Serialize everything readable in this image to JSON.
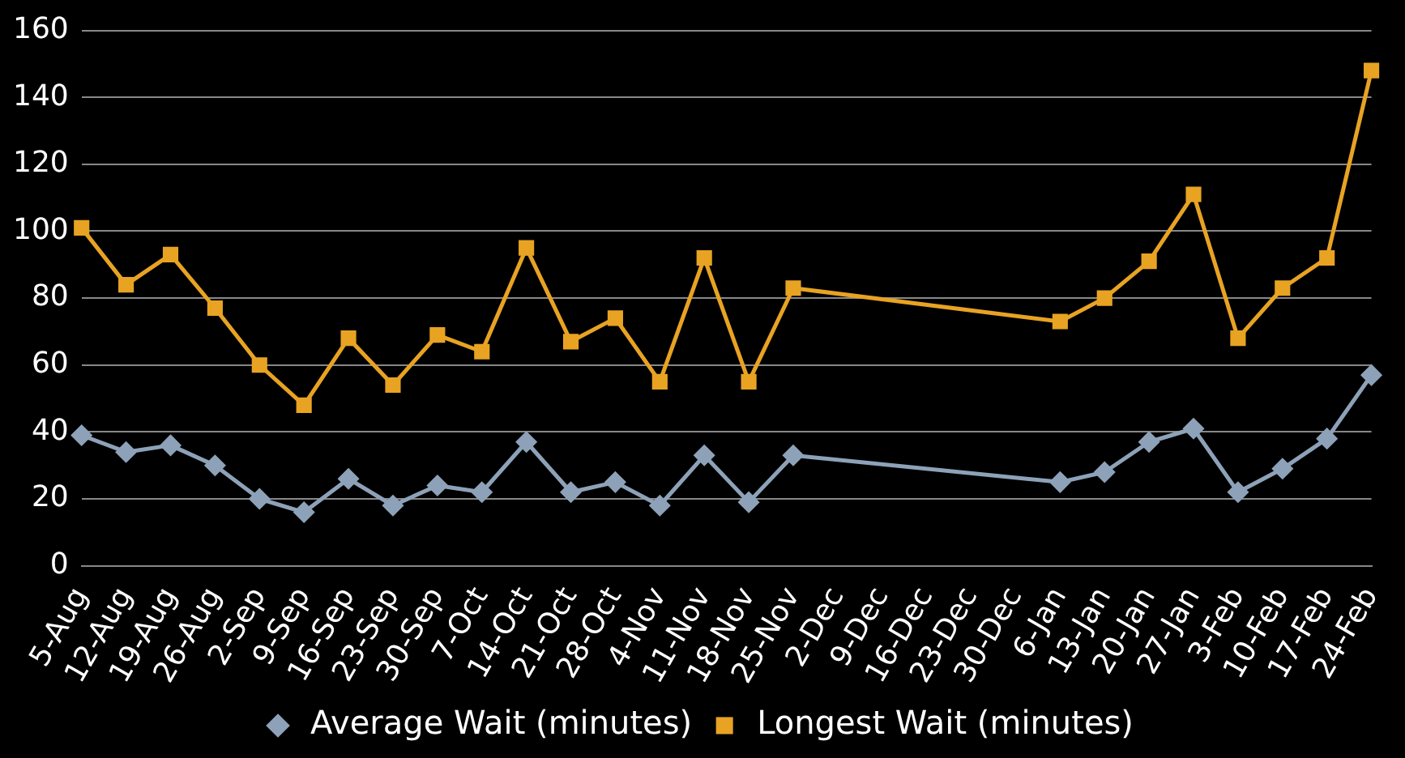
{
  "chart_data": {
    "type": "line",
    "categories": [
      "5-Aug",
      "12-Aug",
      "19-Aug",
      "26-Aug",
      "2-Sep",
      "9-Sep",
      "16-Sep",
      "23-Sep",
      "30-Sep",
      "7-Oct",
      "14-Oct",
      "21-Oct",
      "28-Oct",
      "4-Nov",
      "11-Nov",
      "18-Nov",
      "25-Nov",
      "2-Dec",
      "9-Dec",
      "16-Dec",
      "23-Dec",
      "30-Dec",
      "6-Jan",
      "13-Jan",
      "20-Jan",
      "27-Jan",
      "3-Feb",
      "10-Feb",
      "17-Feb",
      "24-Feb"
    ],
    "series": [
      {
        "name": "Average Wait (minutes)",
        "color": "#8da2b8",
        "marker": "diamond",
        "values": [
          39,
          34,
          36,
          30,
          20,
          16,
          26,
          18,
          24,
          22,
          37,
          22,
          25,
          18,
          33,
          19,
          33,
          null,
          null,
          null,
          null,
          null,
          25,
          28,
          37,
          41,
          22,
          29,
          38,
          57
        ]
      },
      {
        "name": "Longest Wait (minutes)",
        "color": "#e8a323",
        "marker": "square",
        "values": [
          101,
          84,
          93,
          77,
          60,
          48,
          68,
          54,
          69,
          64,
          95,
          67,
          74,
          55,
          92,
          55,
          83,
          null,
          null,
          null,
          null,
          null,
          73,
          80,
          91,
          111,
          68,
          83,
          92,
          148
        ]
      }
    ],
    "ylim": [
      0,
      160
    ],
    "yticks": [
      0,
      20,
      40,
      60,
      80,
      100,
      120,
      140,
      160
    ],
    "grid": "y",
    "legend": "bottom"
  }
}
